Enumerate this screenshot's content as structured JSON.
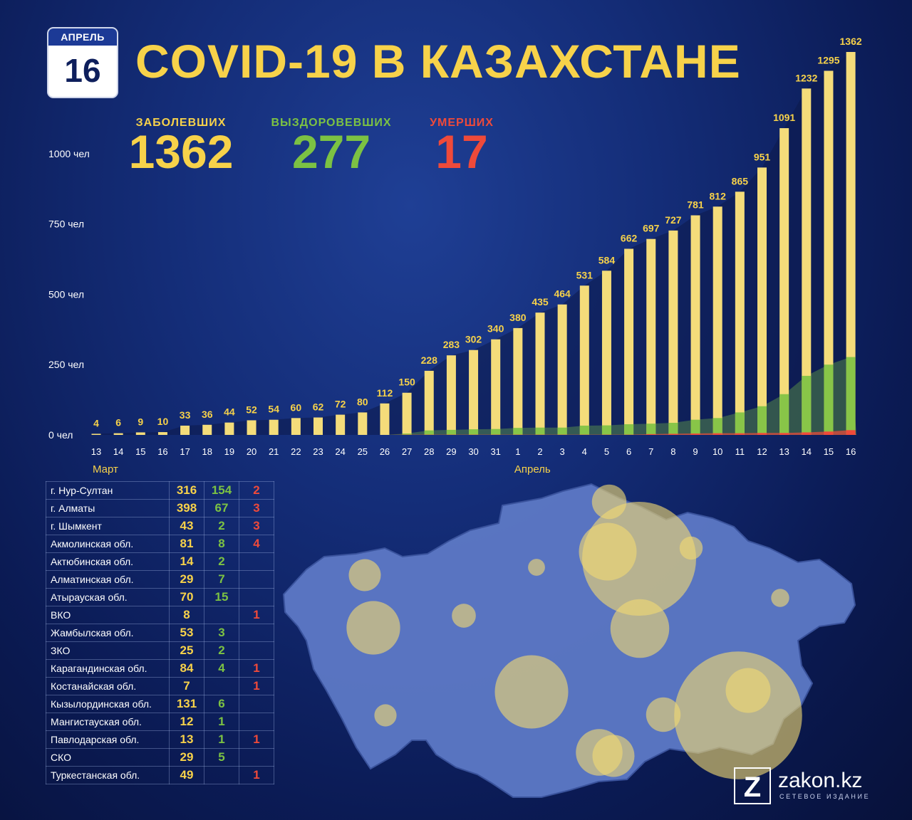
{
  "header": {
    "date_month": "АПРЕЛЬ",
    "date_day": "16",
    "title": "COVID-19 В КАЗАХСТАНЕ"
  },
  "stats": {
    "cases_label": "ЗАБОЛЕВШИХ",
    "cases_value": "1362",
    "recovered_label": "ВЫЗДОРОВЕВШИХ",
    "recovered_value": "277",
    "deaths_label": "УМЕРШИХ",
    "deaths_value": "17"
  },
  "colors": {
    "cases": "#f7d24a",
    "recovered": "#7cc243",
    "deaths": "#ef4a3a",
    "background": "#142d78",
    "map": "#5d79c6"
  },
  "chart_data": {
    "type": "bar",
    "y_ticks": [
      "0 чел",
      "250 чел",
      "500 чел",
      "750 чел",
      "1000 чел"
    ],
    "ylim": [
      0,
      1362
    ],
    "month_labels": [
      {
        "label": "Март",
        "category_index": 0
      },
      {
        "label": "Апрель",
        "category_index": 19
      }
    ],
    "categories": [
      "13",
      "14",
      "15",
      "16",
      "17",
      "18",
      "19",
      "20",
      "21",
      "22",
      "23",
      "24",
      "25",
      "26",
      "27",
      "28",
      "29",
      "30",
      "31",
      "1",
      "2",
      "3",
      "4",
      "5",
      "6",
      "7",
      "8",
      "9",
      "10",
      "11",
      "12",
      "13",
      "14",
      "15",
      "16"
    ],
    "series": [
      {
        "key": "cases",
        "values": [
          4,
          6,
          9,
          10,
          33,
          36,
          44,
          52,
          54,
          60,
          62,
          72,
          80,
          112,
          150,
          228,
          283,
          302,
          340,
          380,
          435,
          464,
          531,
          584,
          662,
          697,
          727,
          781,
          812,
          865,
          951,
          1091,
          1232,
          1295,
          1362
        ]
      },
      {
        "key": "recovered",
        "values": [
          0,
          0,
          0,
          0,
          0,
          0,
          0,
          0,
          0,
          0,
          0,
          0,
          0,
          0,
          5,
          16,
          18,
          20,
          21,
          25,
          26,
          26,
          33,
          34,
          38,
          40,
          43,
          54,
          60,
          80,
          102,
          145,
          210,
          250,
          277
        ]
      },
      {
        "key": "deaths",
        "values": [
          0,
          0,
          0,
          0,
          0,
          0,
          0,
          0,
          0,
          0,
          0,
          0,
          0,
          0,
          1,
          1,
          1,
          1,
          1,
          1,
          1,
          1,
          1,
          1,
          1,
          3,
          4,
          5,
          6,
          6,
          7,
          7,
          9,
          12,
          17
        ]
      }
    ],
    "legend": "none",
    "grid": false
  },
  "regions": [
    {
      "name": "г. Нур-Султан",
      "cases": "316",
      "recovered": "154",
      "deaths": "2"
    },
    {
      "name": "г. Алматы",
      "cases": "398",
      "recovered": "67",
      "deaths": "3"
    },
    {
      "name": "г. Шымкент",
      "cases": "43",
      "recovered": "2",
      "deaths": "3"
    },
    {
      "name": "Акмолинская обл.",
      "cases": "81",
      "recovered": "8",
      "deaths": "4"
    },
    {
      "name": "Актюбинская обл.",
      "cases": "14",
      "recovered": "2",
      "deaths": ""
    },
    {
      "name": "Алматинская обл.",
      "cases": "29",
      "recovered": "7",
      "deaths": ""
    },
    {
      "name": "Атырауская обл.",
      "cases": "70",
      "recovered": "15",
      "deaths": ""
    },
    {
      "name": "ВКО",
      "cases": "8",
      "recovered": "",
      "deaths": "1"
    },
    {
      "name": "Жамбылская обл.",
      "cases": "53",
      "recovered": "3",
      "deaths": ""
    },
    {
      "name": "ЗКО",
      "cases": "25",
      "recovered": "2",
      "deaths": ""
    },
    {
      "name": "Карагандинская обл.",
      "cases": "84",
      "recovered": "4",
      "deaths": "1"
    },
    {
      "name": "Костанайская обл.",
      "cases": "7",
      "recovered": "",
      "deaths": "1"
    },
    {
      "name": "Кызылординская обл.",
      "cases": "131",
      "recovered": "6",
      "deaths": ""
    },
    {
      "name": "Мангистауская обл.",
      "cases": "12",
      "recovered": "1",
      "deaths": ""
    },
    {
      "name": "Павлодарская обл.",
      "cases": "13",
      "recovered": "1",
      "deaths": "1"
    },
    {
      "name": "СКО",
      "cases": "29",
      "recovered": "5",
      "deaths": ""
    },
    {
      "name": "Туркестанская обл.",
      "cases": "49",
      "recovered": "",
      "deaths": "1"
    }
  ],
  "map": {
    "bubbles": [
      {
        "region": "г. Нур-Султан",
        "cases": 316
      },
      {
        "region": "г. Алматы",
        "cases": 398
      },
      {
        "region": "г. Шымкент",
        "cases": 43
      },
      {
        "region": "Акмолинская обл.",
        "cases": 81
      },
      {
        "region": "Актюбинская обл.",
        "cases": 14
      },
      {
        "region": "Алматинская обл.",
        "cases": 29
      },
      {
        "region": "Атырауская обл.",
        "cases": 70
      },
      {
        "region": "ВКО",
        "cases": 8
      },
      {
        "region": "Жамбылская обл.",
        "cases": 53
      },
      {
        "region": "ЗКО",
        "cases": 25
      },
      {
        "region": "Карагандинская обл.",
        "cases": 84
      },
      {
        "region": "Костанайская обл.",
        "cases": 7
      },
      {
        "region": "Кызылординская обл.",
        "cases": 131
      },
      {
        "region": "Мангистауская обл.",
        "cases": 12
      },
      {
        "region": "Павлодарская обл.",
        "cases": 13
      },
      {
        "region": "СКО",
        "cases": 29
      },
      {
        "region": "Туркестанская обл.",
        "cases": 49
      }
    ]
  },
  "logo": {
    "mark": "Z",
    "name": "zakon.kz",
    "tagline": "СЕТЕВОЕ ИЗДАНИЕ"
  }
}
